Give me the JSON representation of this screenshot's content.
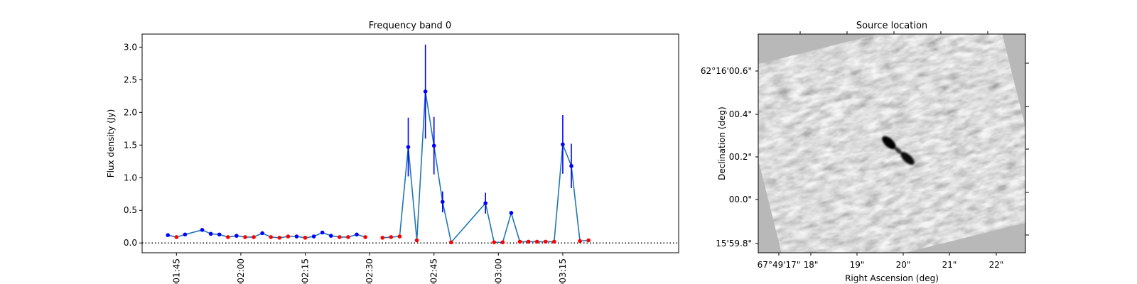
{
  "chart_data": [
    {
      "type": "line",
      "title": "Frequency band 0",
      "xlabel": "",
      "ylabel": "Flux density (Jy)",
      "xaxis": {
        "type": "time",
        "ticks": [
          "01:45",
          "02:00",
          "02:15",
          "02:30",
          "02:45",
          "03:00",
          "03:15"
        ],
        "range": [
          "01:37",
          "03:42"
        ]
      },
      "ylim": [
        -0.15,
        3.2
      ],
      "yticks": [
        0.0,
        0.5,
        1.0,
        1.5,
        2.0,
        2.5,
        3.0
      ],
      "grid": false,
      "reference_line": {
        "y": 0,
        "style": "dotted",
        "color": "#000000"
      },
      "line_color": "#1f77b4",
      "colors": {
        "detection": "#0000ff",
        "upper_limit": "#ff0000"
      },
      "segments": [
        {
          "points": [
            {
              "x": "01:43",
              "y": 0.12,
              "err": 0,
              "kind": "detection"
            },
            {
              "x": "01:45",
              "y": 0.09,
              "err": 0,
              "kind": "upper_limit"
            },
            {
              "x": "01:47",
              "y": 0.13,
              "err": 0,
              "kind": "detection"
            },
            {
              "x": "01:51",
              "y": 0.2,
              "err": 0,
              "kind": "detection"
            },
            {
              "x": "01:53",
              "y": 0.14,
              "err": 0,
              "kind": "detection"
            },
            {
              "x": "01:55",
              "y": 0.13,
              "err": 0,
              "kind": "detection"
            },
            {
              "x": "01:57",
              "y": 0.09,
              "err": 0,
              "kind": "upper_limit"
            },
            {
              "x": "01:59",
              "y": 0.11,
              "err": 0,
              "kind": "detection"
            },
            {
              "x": "02:01",
              "y": 0.09,
              "err": 0,
              "kind": "upper_limit"
            },
            {
              "x": "02:03",
              "y": 0.09,
              "err": 0,
              "kind": "upper_limit"
            },
            {
              "x": "02:05",
              "y": 0.15,
              "err": 0,
              "kind": "detection"
            },
            {
              "x": "02:07",
              "y": 0.09,
              "err": 0,
              "kind": "upper_limit"
            },
            {
              "x": "02:09",
              "y": 0.08,
              "err": 0,
              "kind": "upper_limit"
            },
            {
              "x": "02:11",
              "y": 0.1,
              "err": 0,
              "kind": "upper_limit"
            },
            {
              "x": "02:13",
              "y": 0.1,
              "err": 0,
              "kind": "detection"
            },
            {
              "x": "02:15",
              "y": 0.08,
              "err": 0,
              "kind": "upper_limit"
            },
            {
              "x": "02:17",
              "y": 0.1,
              "err": 0,
              "kind": "detection"
            },
            {
              "x": "02:19",
              "y": 0.16,
              "err": 0,
              "kind": "detection"
            },
            {
              "x": "02:21",
              "y": 0.11,
              "err": 0,
              "kind": "detection"
            },
            {
              "x": "02:23",
              "y": 0.09,
              "err": 0,
              "kind": "upper_limit"
            },
            {
              "x": "02:25",
              "y": 0.09,
              "err": 0,
              "kind": "upper_limit"
            },
            {
              "x": "02:27",
              "y": 0.13,
              "err": 0,
              "kind": "detection"
            },
            {
              "x": "02:29",
              "y": 0.09,
              "err": 0,
              "kind": "upper_limit"
            }
          ]
        },
        {
          "points": [
            {
              "x": "02:33",
              "y": 0.08,
              "err": 0,
              "kind": "upper_limit"
            },
            {
              "x": "02:35",
              "y": 0.09,
              "err": 0,
              "kind": "upper_limit"
            },
            {
              "x": "02:37",
              "y": 0.1,
              "err": 0,
              "kind": "upper_limit"
            },
            {
              "x": "02:39",
              "y": 1.47,
              "err": 0.45,
              "kind": "detection"
            },
            {
              "x": "02:41",
              "y": 0.04,
              "err": 0,
              "kind": "upper_limit"
            },
            {
              "x": "02:43",
              "y": 2.32,
              "err": 0.72,
              "kind": "detection"
            },
            {
              "x": "02:45",
              "y": 1.49,
              "err": 0.44,
              "kind": "detection"
            },
            {
              "x": "02:47",
              "y": 0.63,
              "err": 0.16,
              "kind": "detection"
            },
            {
              "x": "02:49",
              "y": 0.01,
              "err": 0,
              "kind": "upper_limit"
            },
            {
              "x": "02:57",
              "y": 0.61,
              "err": 0.16,
              "kind": "detection"
            },
            {
              "x": "02:59",
              "y": 0.01,
              "err": 0,
              "kind": "upper_limit"
            },
            {
              "x": "03:01",
              "y": 0.01,
              "err": 0,
              "kind": "upper_limit"
            },
            {
              "x": "03:03",
              "y": 0.46,
              "err": 0.03,
              "kind": "detection"
            },
            {
              "x": "03:05",
              "y": 0.02,
              "err": 0,
              "kind": "upper_limit"
            },
            {
              "x": "03:07",
              "y": 0.02,
              "err": 0,
              "kind": "upper_limit"
            },
            {
              "x": "03:09",
              "y": 0.02,
              "err": 0,
              "kind": "upper_limit"
            },
            {
              "x": "03:11",
              "y": 0.02,
              "err": 0,
              "kind": "upper_limit"
            },
            {
              "x": "03:13",
              "y": 0.02,
              "err": 0,
              "kind": "upper_limit"
            },
            {
              "x": "03:15",
              "y": 1.51,
              "err": 0.45,
              "kind": "detection"
            },
            {
              "x": "03:17",
              "y": 1.18,
              "err": 0.34,
              "kind": "detection"
            },
            {
              "x": "03:19",
              "y": 0.03,
              "err": 0,
              "kind": "upper_limit"
            },
            {
              "x": "03:21",
              "y": 0.04,
              "err": 0,
              "kind": "upper_limit"
            }
          ]
        }
      ]
    },
    {
      "type": "image",
      "title": "Source location",
      "xlabel": "Right Ascension (deg)",
      "ylabel": "Declination (deg)",
      "xticks": [
        "67°49'17\"",
        "18\"",
        "19\"",
        "20\"",
        "21\"",
        "22\""
      ],
      "yticks": [
        "15'59.8\"",
        "00.0\"",
        "00.2\"",
        "00.4\"",
        "62°16'00.6\""
      ],
      "colormap": "grayscale"
    }
  ]
}
